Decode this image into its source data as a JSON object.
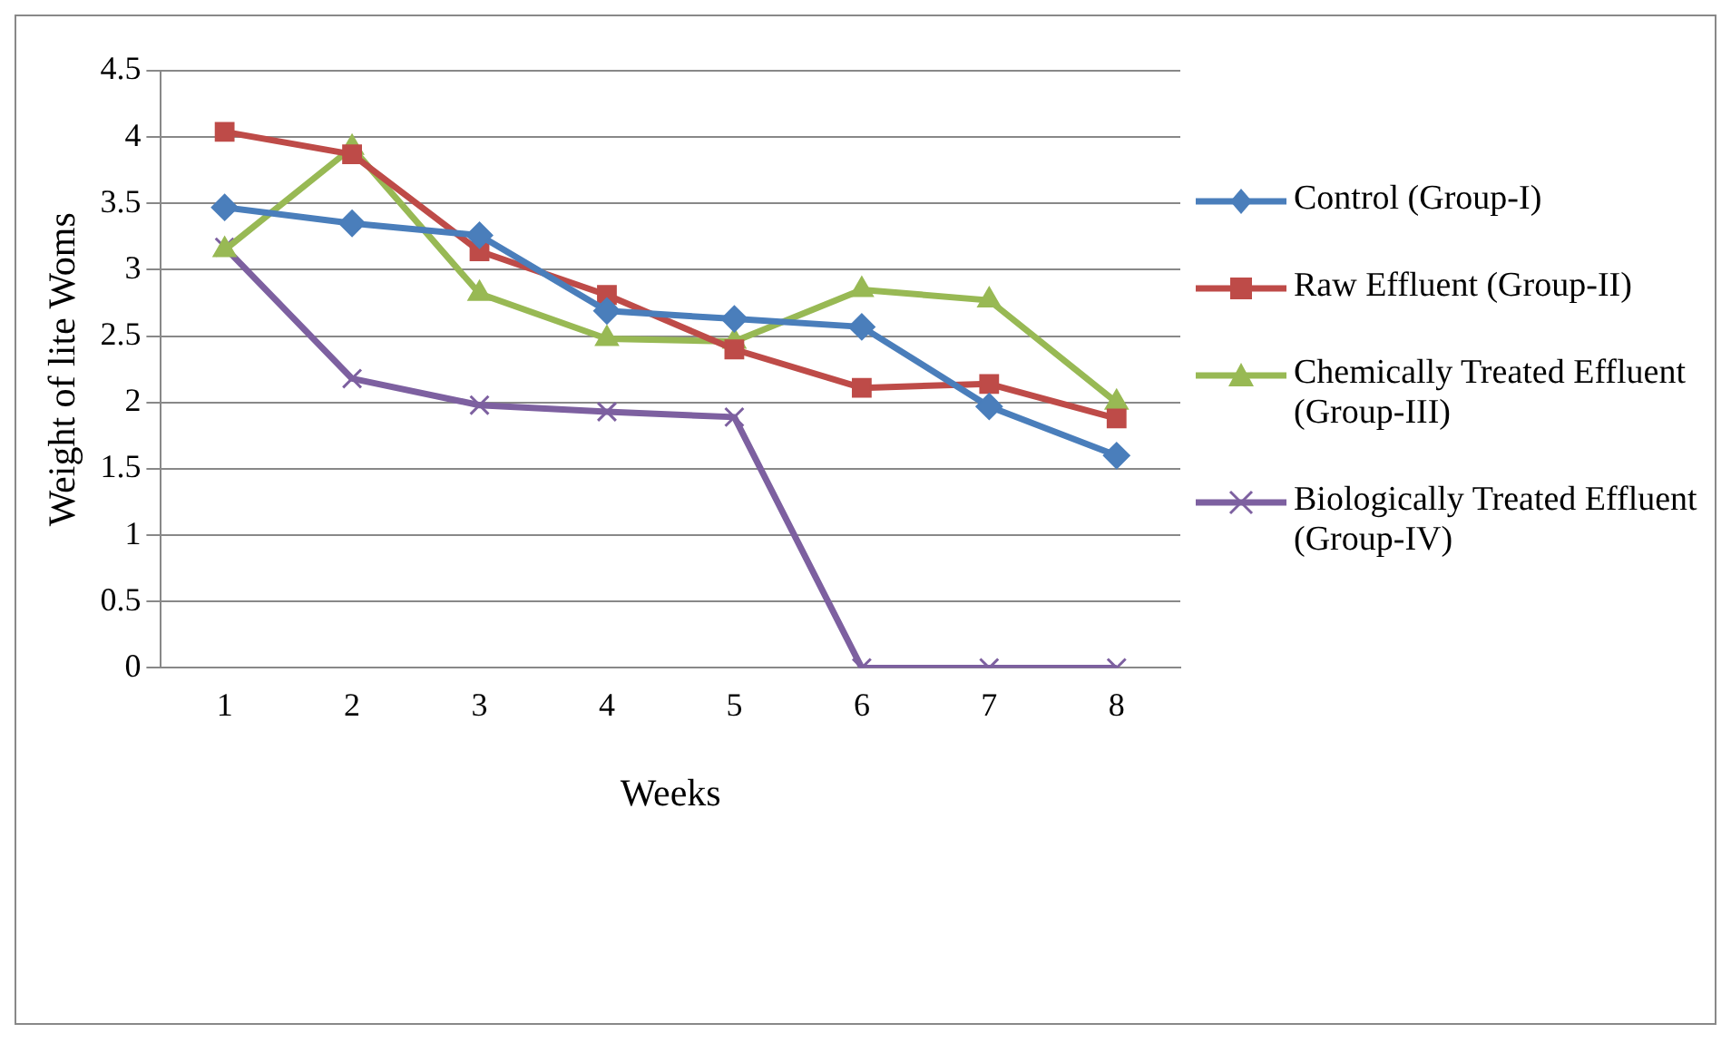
{
  "chart_data": {
    "type": "line",
    "xlabel": "Weeks",
    "ylabel": "Weight of lite Woms",
    "categories": [
      "1",
      "2",
      "3",
      "4",
      "5",
      "6",
      "7",
      "8"
    ],
    "ylim": [
      0,
      4.5
    ],
    "yticks": [
      0,
      0.5,
      1,
      1.5,
      2,
      2.5,
      3,
      3.5,
      4,
      4.5
    ],
    "grid": "y",
    "legend": "right",
    "line_style": "solid",
    "series": [
      {
        "name": "Control (Group-I)",
        "color": "#4a7ebb",
        "marker": "diamond",
        "values": [
          3.47,
          3.35,
          3.26,
          2.69,
          2.63,
          2.57,
          1.97,
          1.6
        ]
      },
      {
        "name": "Raw Effluent (Group-II)",
        "color": "#be4b48",
        "marker": "square",
        "values": [
          4.04,
          3.87,
          3.14,
          2.81,
          2.4,
          2.11,
          2.14,
          1.88
        ]
      },
      {
        "name": "Chemically Treated Effluent (Group-III)",
        "color": "#98b954",
        "marker": "triangle",
        "values": [
          3.15,
          3.92,
          2.82,
          2.48,
          2.46,
          2.85,
          2.77,
          2.0
        ]
      },
      {
        "name": "Biologically Treated Effluent (Group-IV)",
        "color": "#7d60a0",
        "marker": "cross",
        "values": [
          3.17,
          2.18,
          1.98,
          1.93,
          1.89,
          0,
          0,
          0
        ]
      }
    ]
  }
}
